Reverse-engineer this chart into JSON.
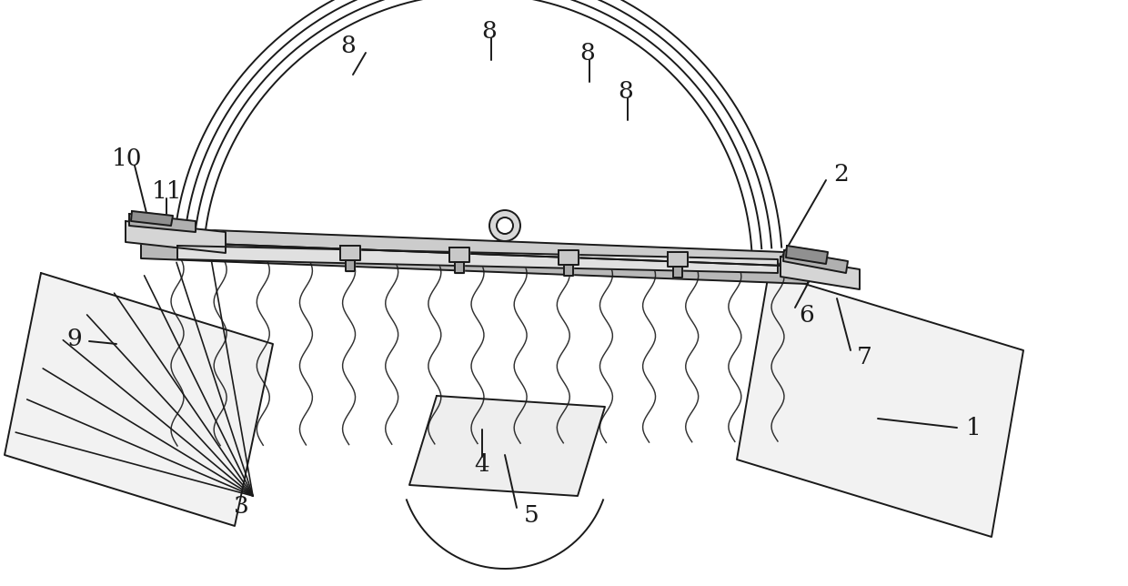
{
  "bg_color": "#ffffff",
  "line_color": "#1a1a1a",
  "lw": 1.4,
  "figsize": [
    12.4,
    6.44
  ],
  "dpi": 100,
  "label_fontsize": 19
}
